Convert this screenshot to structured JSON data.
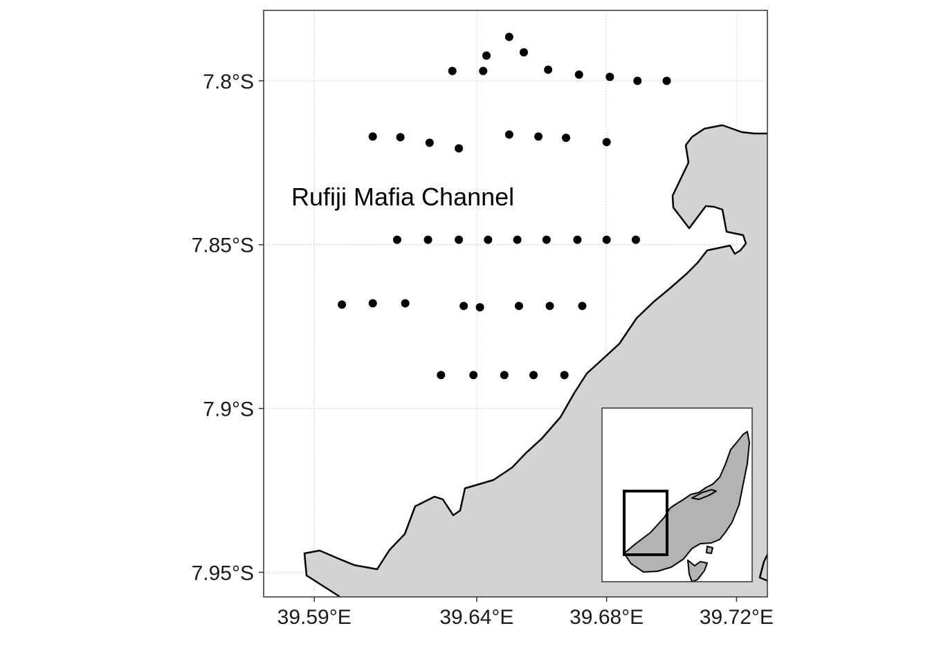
{
  "map": {
    "place_label": "Rufiji Mafia Channel",
    "x_ticks": [
      {
        "value": 39.59,
        "label": "39.59°E"
      },
      {
        "value": 39.64,
        "label": "39.64°E"
      },
      {
        "value": 39.68,
        "label": "39.68°E"
      },
      {
        "value": 39.72,
        "label": "39.72°E"
      }
    ],
    "y_ticks": [
      {
        "value": -7.8,
        "label": "7.8°S"
      },
      {
        "value": -7.85,
        "label": "7.85°S"
      },
      {
        "value": -7.9,
        "label": "7.9°S"
      },
      {
        "value": -7.95,
        "label": "7.95°S"
      }
    ],
    "xlim": [
      39.5744,
      39.7295
    ],
    "ylim": [
      -7.9575,
      -7.7785
    ],
    "colors": {
      "land": "#d3d3d3",
      "coast": "#000000",
      "points": "#000000",
      "inset_land": "#b3b3b3",
      "panel_border": "#333333"
    },
    "sampling_stations": [
      {
        "lon": 39.65,
        "lat": -7.7866
      },
      {
        "lon": 39.643,
        "lat": -7.7923
      },
      {
        "lon": 39.6545,
        "lat": -7.7913
      },
      {
        "lon": 39.6325,
        "lat": -7.797
      },
      {
        "lon": 39.642,
        "lat": -7.797
      },
      {
        "lon": 39.662,
        "lat": -7.7966
      },
      {
        "lon": 39.6715,
        "lat": -7.7981
      },
      {
        "lon": 39.681,
        "lat": -7.7988
      },
      {
        "lon": 39.6895,
        "lat": -7.8
      },
      {
        "lon": 39.6985,
        "lat": -7.8
      },
      {
        "lon": 39.608,
        "lat": -7.817
      },
      {
        "lon": 39.6165,
        "lat": -7.8172
      },
      {
        "lon": 39.6255,
        "lat": -7.8189
      },
      {
        "lon": 39.6345,
        "lat": -7.8206
      },
      {
        "lon": 39.65,
        "lat": -7.8164
      },
      {
        "lon": 39.659,
        "lat": -7.817
      },
      {
        "lon": 39.6675,
        "lat": -7.8174
      },
      {
        "lon": 39.68,
        "lat": -7.8187
      },
      {
        "lon": 39.6155,
        "lat": -7.8485
      },
      {
        "lon": 39.625,
        "lat": -7.8485
      },
      {
        "lon": 39.6345,
        "lat": -7.8485
      },
      {
        "lon": 39.6435,
        "lat": -7.8485
      },
      {
        "lon": 39.6525,
        "lat": -7.8485
      },
      {
        "lon": 39.6615,
        "lat": -7.8485
      },
      {
        "lon": 39.671,
        "lat": -7.8485
      },
      {
        "lon": 39.68,
        "lat": -7.8485
      },
      {
        "lon": 39.689,
        "lat": -7.8485
      },
      {
        "lon": 39.5985,
        "lat": -7.8683
      },
      {
        "lon": 39.608,
        "lat": -7.8679
      },
      {
        "lon": 39.618,
        "lat": -7.8679
      },
      {
        "lon": 39.636,
        "lat": -7.8687
      },
      {
        "lon": 39.641,
        "lat": -7.8691
      },
      {
        "lon": 39.653,
        "lat": -7.8687
      },
      {
        "lon": 39.6625,
        "lat": -7.8687
      },
      {
        "lon": 39.6725,
        "lat": -7.8687
      },
      {
        "lon": 39.629,
        "lat": -7.8898
      },
      {
        "lon": 39.639,
        "lat": -7.8898
      },
      {
        "lon": 39.6485,
        "lat": -7.8898
      },
      {
        "lon": 39.6575,
        "lat": -7.8898
      },
      {
        "lon": 39.667,
        "lat": -7.8898
      }
    ]
  }
}
